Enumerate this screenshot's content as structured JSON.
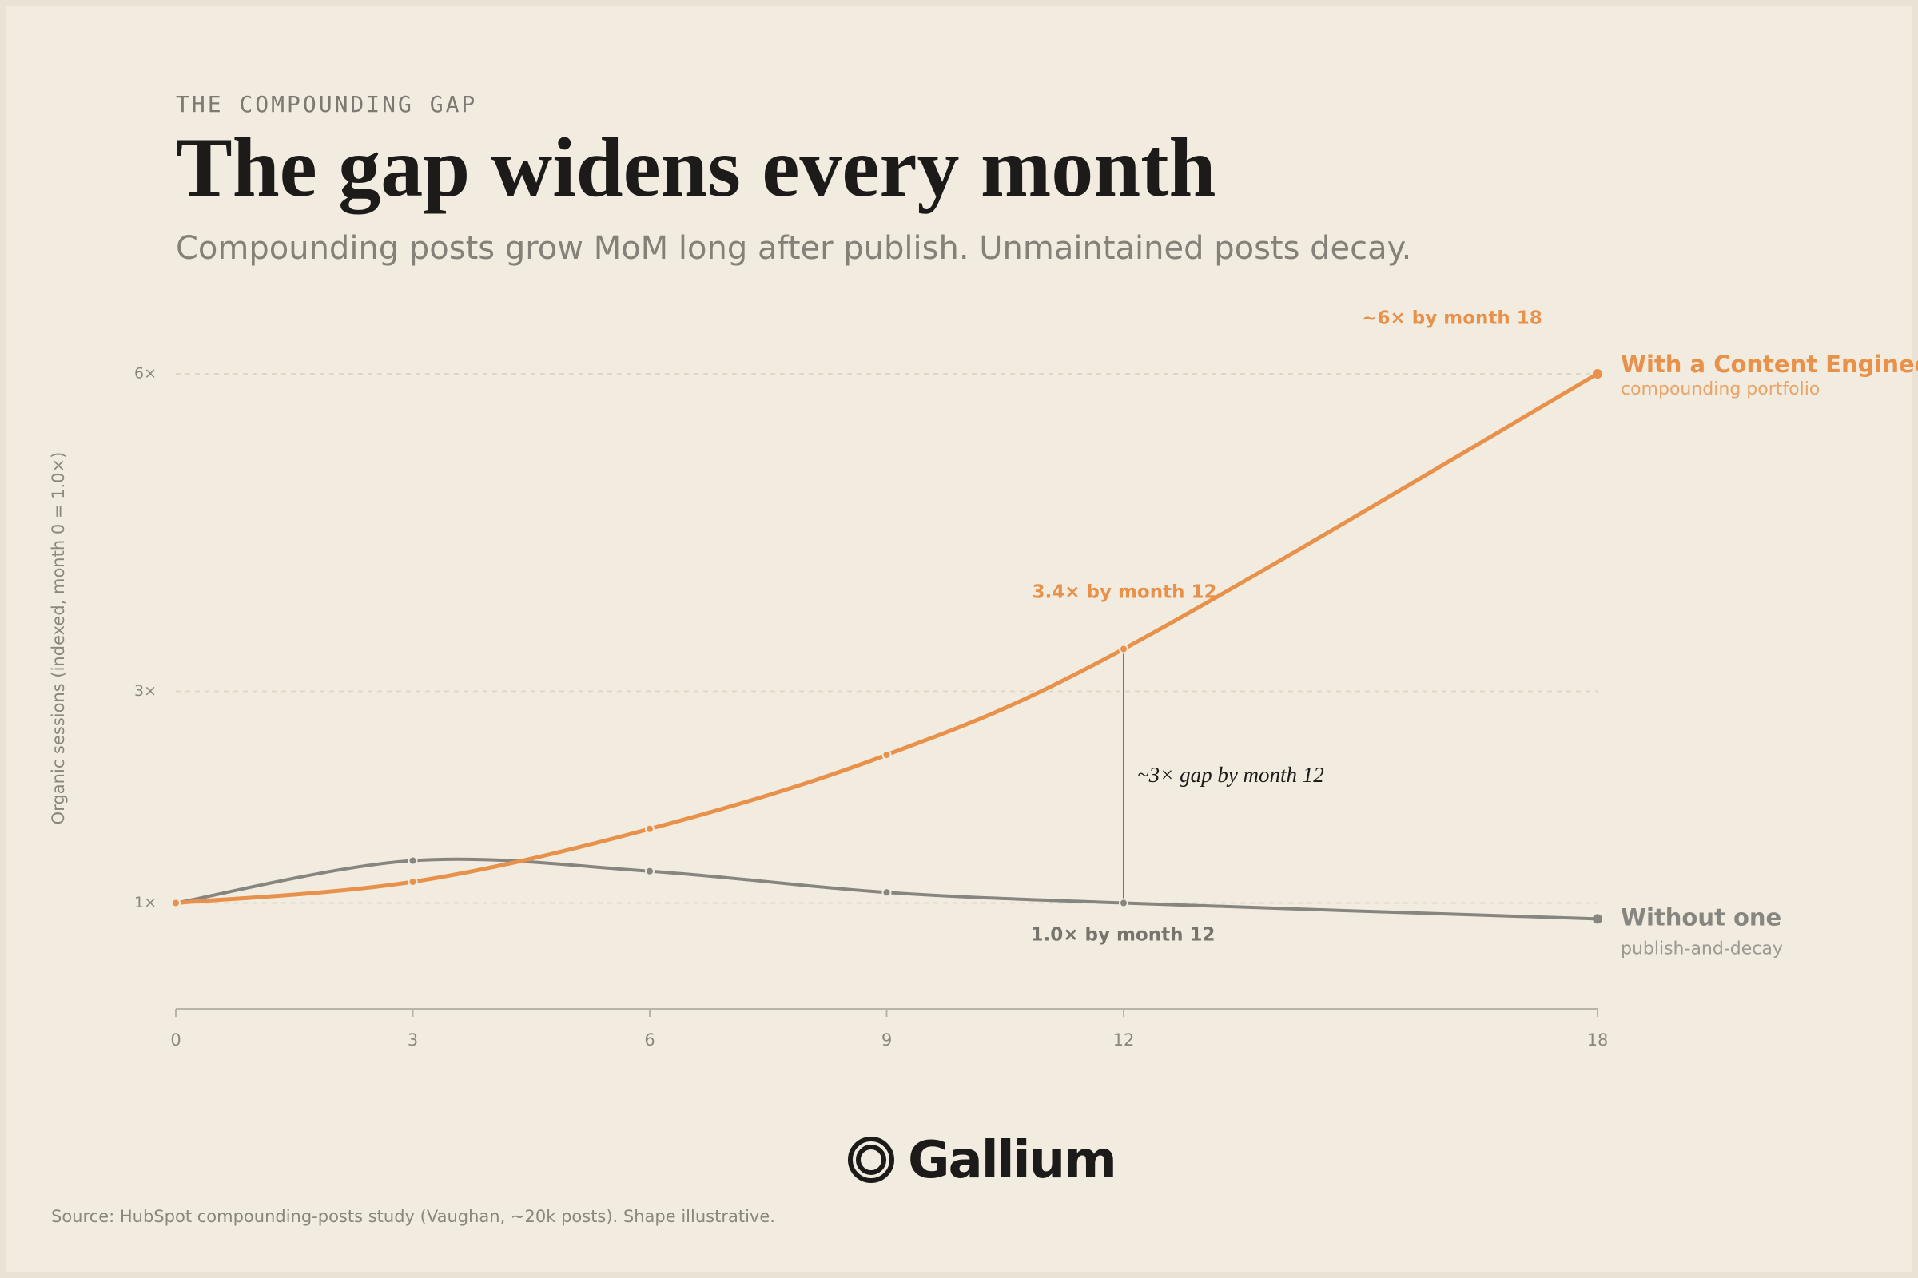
{
  "eyebrow": "THE COMPOUNDING GAP",
  "chart_data": {
    "type": "line",
    "title": "The gap widens every month",
    "subtitle": "Compounding posts grow MoM long after publish. Unmaintained posts decay.",
    "y_label": "Organic sessions (indexed, month 0 = 1.0×)",
    "x": [
      0,
      3,
      6,
      9,
      12,
      18
    ],
    "xlim": [
      0,
      18
    ],
    "xticks": [
      0,
      3,
      6,
      9,
      12,
      18
    ],
    "ylim": [
      0,
      6
    ],
    "yticks": [
      {
        "value": 1,
        "label": "1×"
      },
      {
        "value": 3,
        "label": "3×"
      },
      {
        "value": 6,
        "label": "6×"
      }
    ],
    "grid": true,
    "series": [
      {
        "name": "With a Content Engineer",
        "description": "compounding portfolio",
        "color": "#e8914a",
        "values": [
          1,
          1.2,
          1.7,
          2.4,
          3.4,
          6
        ]
      },
      {
        "name": "Without one",
        "description": "publish-and-decay",
        "color": "#878580",
        "values": [
          1,
          1.4,
          1.3,
          1.1,
          1.0,
          0.85
        ]
      }
    ],
    "annotations": [
      "~6× by month 18",
      "3.4× by month 12",
      "~3× gap by month 12",
      "1.0× by month 12"
    ]
  },
  "logo": "Gallium",
  "source": "Source: HubSpot compounding-posts study (Vaughan, ~20k posts). Shape illustrative."
}
